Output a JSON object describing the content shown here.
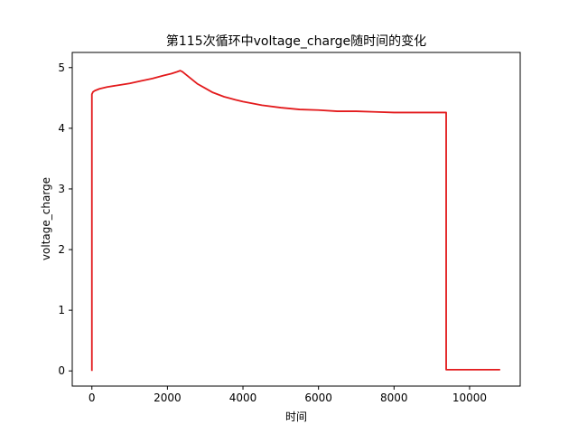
{
  "chart_data": {
    "type": "line",
    "title": "第115次循环中voltage_charge随时间的变化",
    "xlabel": "时间",
    "ylabel": "voltage_charge",
    "xlim": [
      -520,
      11340
    ],
    "ylim": [
      -0.25,
      5.25
    ],
    "xticks": [
      0,
      2000,
      4000,
      6000,
      8000,
      10000
    ],
    "yticks": [
      0,
      1,
      2,
      3,
      4,
      5
    ],
    "grid": false,
    "series": [
      {
        "color": "#e31a1c",
        "x": [
          0,
          0,
          30,
          80,
          200,
          400,
          700,
          1000,
          1300,
          1600,
          1900,
          2100,
          2250,
          2340,
          2400,
          2500,
          2600,
          2700,
          2800,
          3000,
          3200,
          3500,
          3800,
          4000,
          4500,
          5000,
          5500,
          6000,
          6500,
          7000,
          7500,
          8000,
          8500,
          9000,
          9380,
          9380,
          9500,
          10000,
          10500,
          10810
        ],
        "y": [
          0.0,
          4.56,
          4.6,
          4.62,
          4.65,
          4.68,
          4.71,
          4.74,
          4.78,
          4.82,
          4.87,
          4.9,
          4.93,
          4.95,
          4.93,
          4.88,
          4.83,
          4.78,
          4.73,
          4.66,
          4.59,
          4.52,
          4.47,
          4.44,
          4.38,
          4.34,
          4.31,
          4.3,
          4.28,
          4.28,
          4.27,
          4.26,
          4.26,
          4.26,
          4.26,
          0.02,
          0.02,
          0.02,
          0.02,
          0.02
        ]
      }
    ]
  }
}
